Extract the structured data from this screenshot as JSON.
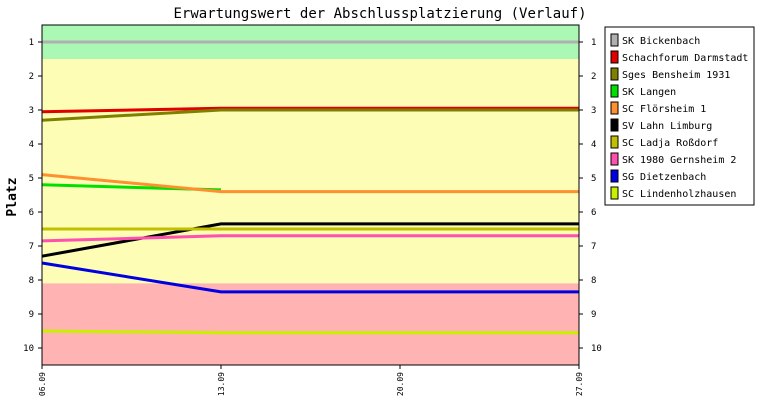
{
  "chart_data": {
    "type": "line",
    "title": "Erwartungswert der Abschlussplatzierung (Verlauf)",
    "ylabel": "Platz",
    "xlabel": "",
    "x_ticks": [
      "06.09",
      "13.09",
      "20.09",
      "27.09"
    ],
    "x_range": [
      "06.09",
      "27.09"
    ],
    "y_ticks": [
      1,
      2,
      3,
      4,
      5,
      6,
      7,
      8,
      9,
      10
    ],
    "ylim": [
      0.5,
      10.5
    ],
    "y_inverted": true,
    "bands": [
      {
        "from": 0.5,
        "to": 1.5,
        "color": "#aaf8b4"
      },
      {
        "from": 1.5,
        "to": 8.1,
        "color": "#fdfdb5"
      },
      {
        "from": 8.1,
        "to": 10.5,
        "color": "#ffb3b3"
      }
    ],
    "legend_position": "right",
    "series": [
      {
        "name": "SK Bickenbach",
        "color": "#b0b0b0",
        "points": [
          [
            "06.09",
            1.0
          ],
          [
            "13.09",
            1.0
          ],
          [
            "20.09",
            1.0
          ],
          [
            "27.09",
            1.0
          ]
        ]
      },
      {
        "name": "Schachforum Darmstadt",
        "color": "#e00000",
        "points": [
          [
            "06.09",
            3.05
          ],
          [
            "13.09",
            2.95
          ],
          [
            "17.09",
            2.95
          ],
          [
            "24.09",
            2.95
          ],
          [
            "27.09",
            2.95
          ]
        ]
      },
      {
        "name": "Sges Bensheim 1931",
        "color": "#808000",
        "points": [
          [
            "06.09",
            3.3
          ],
          [
            "13.09",
            3.0
          ],
          [
            "20.09",
            3.0
          ],
          [
            "27.09",
            3.0
          ]
        ]
      },
      {
        "name": "SK Langen",
        "color": "#00e000",
        "points": [
          [
            "06.09",
            5.2
          ],
          [
            "13.09",
            5.35
          ]
        ]
      },
      {
        "name": "SC Flörsheim 1",
        "color": "#ff9030",
        "points": [
          [
            "06.09",
            4.9
          ],
          [
            "13.09",
            5.4
          ],
          [
            "20.09",
            5.4
          ],
          [
            "27.09",
            5.4
          ]
        ]
      },
      {
        "name": "SV Lahn Limburg",
        "color": "#000000",
        "points": [
          [
            "06.09",
            7.3
          ],
          [
            "13.09",
            6.35
          ],
          [
            "20.09",
            6.35
          ],
          [
            "27.09",
            6.35
          ]
        ]
      },
      {
        "name": "SC Ladja Roßdorf",
        "color": "#c0c000",
        "points": [
          [
            "06.09",
            6.5
          ],
          [
            "13.09",
            6.5
          ],
          [
            "20.09",
            6.5
          ],
          [
            "27.09",
            6.5
          ]
        ]
      },
      {
        "name": "SK 1980 Gernsheim 2",
        "color": "#ff50b0",
        "points": [
          [
            "06.09",
            6.85
          ],
          [
            "13.09",
            6.7
          ],
          [
            "20.09",
            6.7
          ],
          [
            "27.09",
            6.7
          ]
        ]
      },
      {
        "name": "SG Dietzenbach",
        "color": "#0000e0",
        "points": [
          [
            "06.09",
            7.5
          ],
          [
            "13.09",
            8.35
          ],
          [
            "20.09",
            8.35
          ],
          [
            "27.09",
            8.35
          ]
        ]
      },
      {
        "name": "SC Lindenholzhausen",
        "color": "#c8f000",
        "points": [
          [
            "06.09",
            9.5
          ],
          [
            "13.09",
            9.55
          ],
          [
            "20.09",
            9.55
          ],
          [
            "27.09",
            9.55
          ]
        ]
      }
    ]
  }
}
